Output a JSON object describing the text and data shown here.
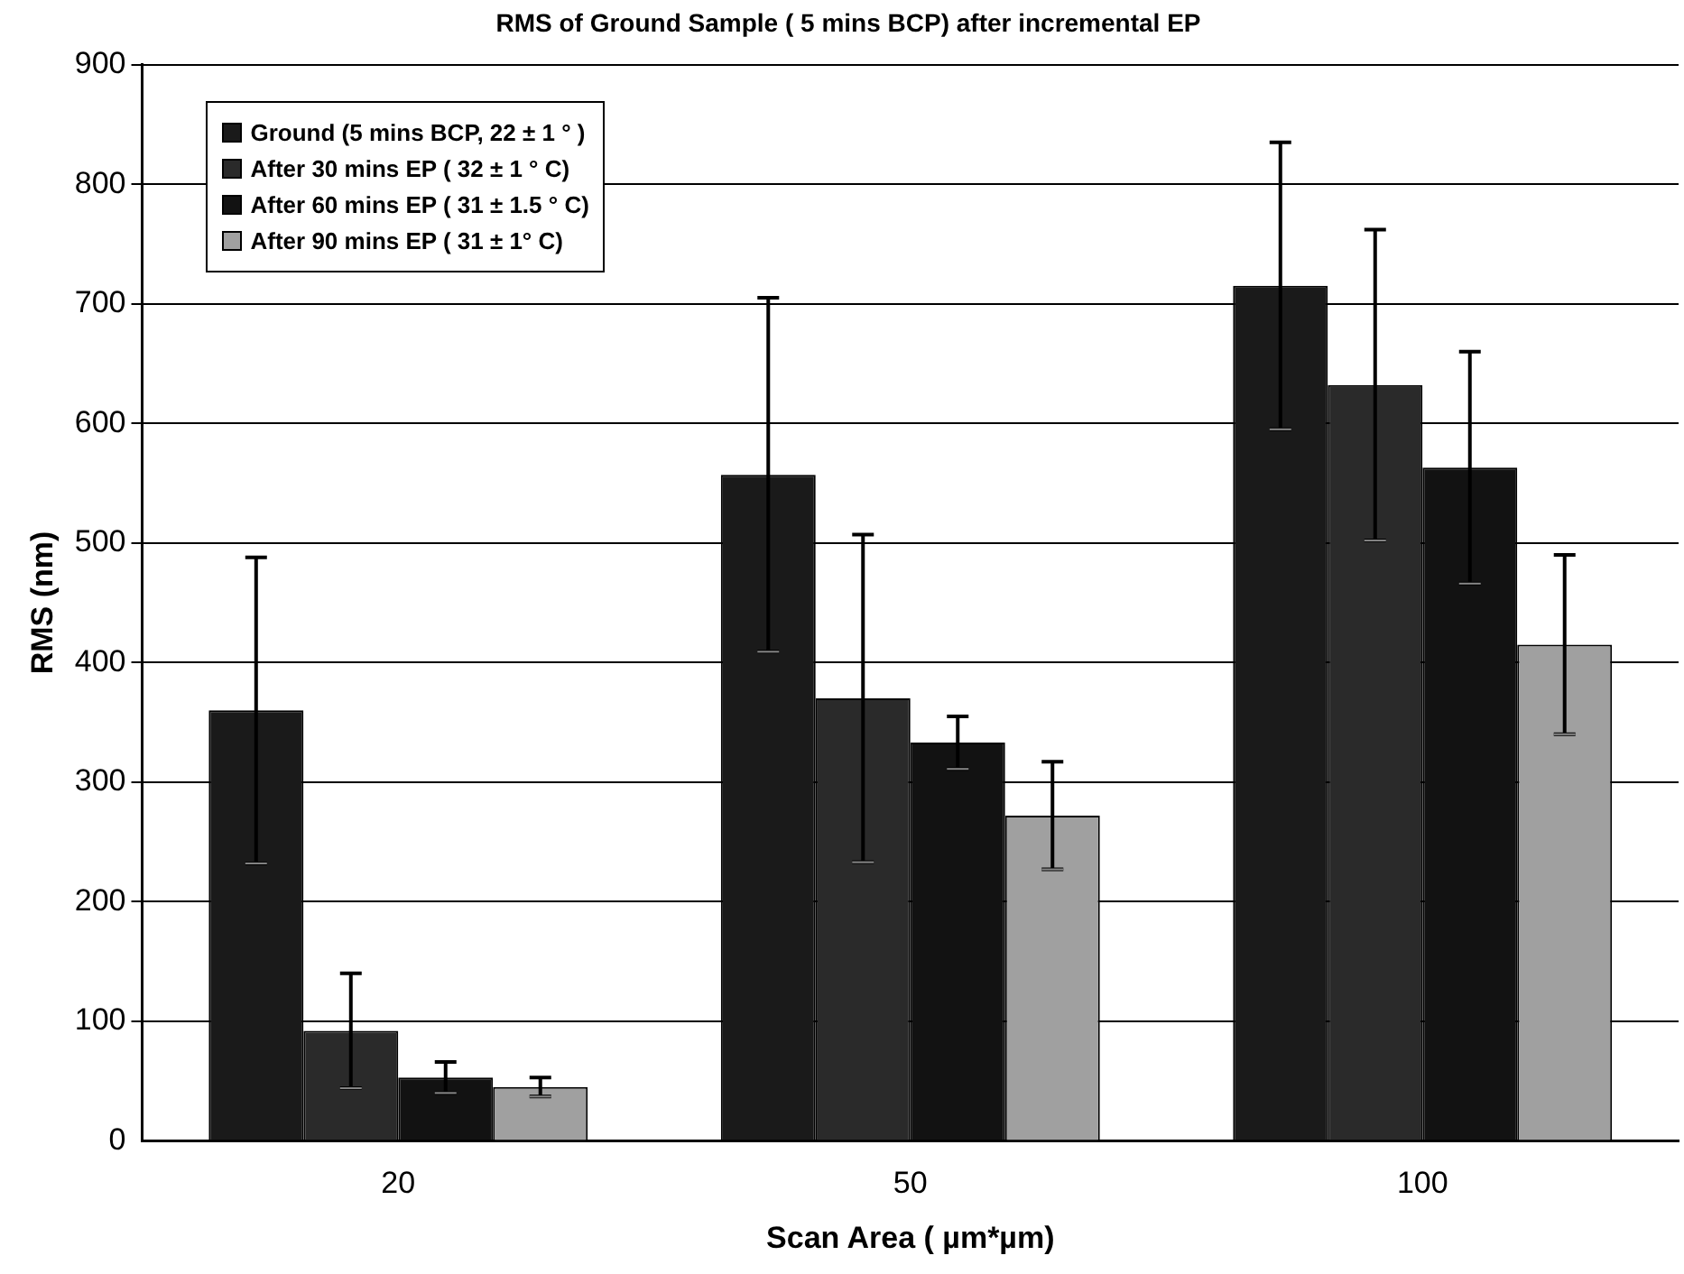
{
  "chart_data": {
    "type": "bar",
    "title": "RMS of Ground Sample ( 5 mins BCP) after incremental EP",
    "xlabel": "Scan Area ( µm*µm)",
    "ylabel": "RMS (nm)",
    "categories": [
      "20",
      "50",
      "100"
    ],
    "series": [
      {
        "name": "Ground (5 mins BCP, 22 ± 1 ° )",
        "color": "#1a1a1a",
        "values": [
          360,
          557,
          715
        ],
        "errors": [
          128,
          148,
          120
        ]
      },
      {
        "name": "After 30 mins EP ( 32 ± 1 ° C)",
        "color": "#2a2a2a",
        "values": [
          92,
          370,
          632
        ],
        "errors": [
          48,
          137,
          130
        ]
      },
      {
        "name": "After 60 mins EP ( 31 ± 1.5 ° C)",
        "color": "#121212",
        "values": [
          53,
          333,
          563
        ],
        "errors": [
          13,
          22,
          97
        ]
      },
      {
        "name": "After 90  mins EP ( 31 ± 1° C)",
        "color": "#a0a0a0",
        "values": [
          45,
          272,
          415
        ],
        "errors": [
          8,
          45,
          75
        ]
      }
    ],
    "ylim": [
      0,
      900
    ],
    "yticks": [
      0,
      100,
      200,
      300,
      400,
      500,
      600,
      700,
      800,
      900
    ],
    "grid": "y",
    "legend": "top left"
  }
}
